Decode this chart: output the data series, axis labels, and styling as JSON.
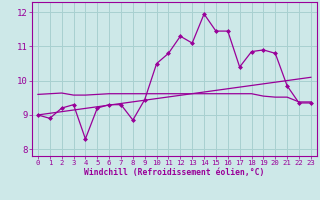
{
  "xlabel": "Windchill (Refroidissement éolien,°C)",
  "xlim": [
    -0.5,
    23.5
  ],
  "ylim": [
    7.8,
    12.3
  ],
  "yticks": [
    8,
    9,
    10,
    11,
    12
  ],
  "xticks": [
    0,
    1,
    2,
    3,
    4,
    5,
    6,
    7,
    8,
    9,
    10,
    11,
    12,
    13,
    14,
    15,
    16,
    17,
    18,
    19,
    20,
    21,
    22,
    23
  ],
  "bg_color": "#cde8e8",
  "grid_color": "#a8d0d0",
  "line_color": "#990099",
  "line1_x": [
    0,
    1,
    2,
    3,
    4,
    5,
    6,
    7,
    8,
    9,
    10,
    11,
    12,
    13,
    14,
    15,
    16,
    17,
    18,
    19,
    20,
    21,
    22,
    23
  ],
  "line1_y": [
    9.0,
    8.9,
    9.2,
    9.3,
    8.3,
    9.2,
    9.3,
    9.3,
    8.85,
    9.45,
    10.5,
    10.8,
    11.3,
    11.1,
    11.95,
    11.45,
    11.45,
    10.4,
    10.85,
    10.9,
    10.8,
    9.85,
    9.35,
    9.35
  ],
  "line2_x": [
    0,
    1,
    2,
    3,
    4,
    5,
    6,
    7,
    8,
    9,
    10,
    11,
    12,
    13,
    14,
    15,
    16,
    17,
    18,
    19,
    20,
    21,
    22,
    23
  ],
  "line2_y": [
    9.6,
    9.62,
    9.64,
    9.58,
    9.58,
    9.6,
    9.62,
    9.62,
    9.62,
    9.62,
    9.62,
    9.62,
    9.62,
    9.62,
    9.62,
    9.62,
    9.62,
    9.62,
    9.62,
    9.55,
    9.52,
    9.52,
    9.38,
    9.38
  ],
  "line3_x": [
    0,
    23
  ],
  "line3_y": [
    9.0,
    10.1
  ]
}
